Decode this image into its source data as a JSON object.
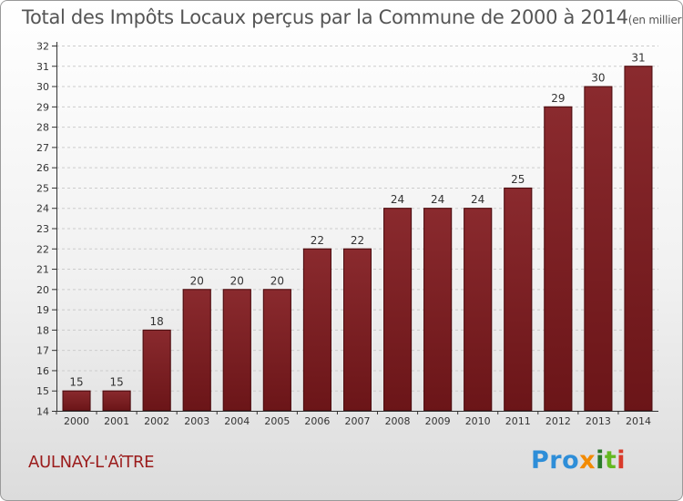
{
  "title": {
    "main": "Total des Impôts Locaux perçus par la Commune de 2000 à 2014",
    "unit": "(en milliers d'€)"
  },
  "commune": "AULNAY-L'AîTRE",
  "logo": {
    "p1": "Pro",
    "p2": "x",
    "p3": "i",
    "p4": "t",
    "p5": "i"
  },
  "colors": {
    "bar": "#6b1518",
    "grid": "#cccccc",
    "axis": "#333333"
  },
  "chart_data": {
    "type": "bar",
    "title": "Total des Impôts Locaux perçus par la Commune de 2000 à 2014",
    "ylabel": "en milliers d'€",
    "xlabel": "",
    "categories": [
      "2000",
      "2001",
      "2002",
      "2003",
      "2004",
      "2005",
      "2006",
      "2007",
      "2008",
      "2009",
      "2010",
      "2011",
      "2012",
      "2013",
      "2014"
    ],
    "values": [
      15,
      15,
      18,
      20,
      20,
      20,
      22,
      22,
      24,
      24,
      24,
      25,
      29,
      30,
      31
    ],
    "ylim": [
      14,
      32
    ],
    "yticks": [
      14,
      15,
      16,
      17,
      18,
      19,
      20,
      21,
      22,
      23,
      24,
      25,
      26,
      27,
      28,
      29,
      30,
      31,
      32
    ],
    "grid": true
  }
}
